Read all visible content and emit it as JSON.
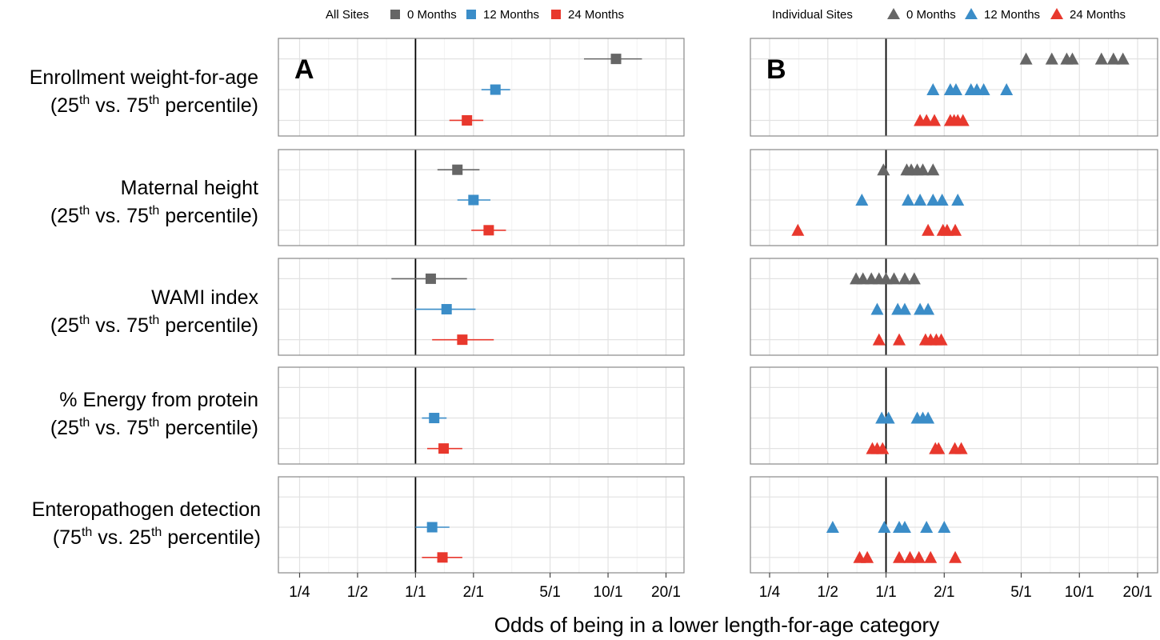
{
  "chart_data": {
    "type": "scatter",
    "xlabel": "Odds of being in a lower length-for-age category",
    "x_scale": "log",
    "x_ticks": [
      {
        "value": 0.25,
        "label": "1/4"
      },
      {
        "value": 0.5,
        "label": "1/2"
      },
      {
        "value": 1,
        "label": "1/1"
      },
      {
        "value": 2,
        "label": "2/1"
      },
      {
        "value": 5,
        "label": "5/1"
      },
      {
        "value": 10,
        "label": "10/1"
      },
      {
        "value": 20,
        "label": "20/1"
      }
    ],
    "xlim": [
      0.2,
      25
    ],
    "reference_line": 1,
    "grid": true,
    "timepoints": [
      {
        "key": "m0",
        "label": "0 Months",
        "color": "#666666"
      },
      {
        "key": "m12",
        "label": "12 Months",
        "color": "#3b8dc8"
      },
      {
        "key": "m24",
        "label": "24 Months",
        "color": "#e8382d"
      }
    ],
    "rows": [
      {
        "label_main": "Enrollment weight-for-age",
        "label_sub": {
          "a": "25",
          "b": "th",
          "c": " vs. 75",
          "d": "th",
          "e": " percentile"
        }
      },
      {
        "label_main": "Maternal height",
        "label_sub": {
          "a": "25",
          "b": "th",
          "c": " vs. 75",
          "d": "th",
          "e": " percentile"
        }
      },
      {
        "label_main": "WAMI index ",
        "label_sub": {
          "a": "25",
          "b": "th",
          "c": " vs. 75",
          "d": "th",
          "e": " percentile"
        }
      },
      {
        "label_main": "% Energy from protein",
        "label_sub": {
          "a": "25",
          "b": "th",
          "c": " vs. 75",
          "d": "th",
          "e": " percentile"
        }
      },
      {
        "label_main": "Enteropathogen detection",
        "label_sub": {
          "a": "75",
          "b": "th",
          "c": " vs. 25",
          "d": "th",
          "e": " percentile"
        }
      }
    ],
    "panels": [
      {
        "letter": "A",
        "legend_title": "All Sites",
        "marker": "square",
        "rows": [
          {
            "m0": {
              "est": 11.0,
              "lo": 7.5,
              "hi": 15.0
            },
            "m12": {
              "est": 2.6,
              "lo": 2.2,
              "hi": 3.1
            },
            "m24": {
              "est": 1.85,
              "lo": 1.5,
              "hi": 2.25
            }
          },
          {
            "m0": {
              "est": 1.65,
              "lo": 1.3,
              "hi": 2.15
            },
            "m12": {
              "est": 2.0,
              "lo": 1.65,
              "hi": 2.45
            },
            "m24": {
              "est": 2.4,
              "lo": 1.95,
              "hi": 2.95
            }
          },
          {
            "m0": {
              "est": 1.2,
              "lo": 0.75,
              "hi": 1.85
            },
            "m12": {
              "est": 1.45,
              "lo": 1.0,
              "hi": 2.05
            },
            "m24": {
              "est": 1.75,
              "lo": 1.22,
              "hi": 2.55
            }
          },
          {
            "m12": {
              "est": 1.25,
              "lo": 1.08,
              "hi": 1.45
            },
            "m24": {
              "est": 1.4,
              "lo": 1.15,
              "hi": 1.75
            }
          },
          {
            "m12": {
              "est": 1.22,
              "lo": 1.0,
              "hi": 1.5
            },
            "m24": {
              "est": 1.38,
              "lo": 1.08,
              "hi": 1.75
            }
          }
        ]
      },
      {
        "letter": "B",
        "legend_title": "Individual Sites",
        "marker": "triangle",
        "rows": [
          {
            "m0": [
              5.3,
              7.2,
              8.6,
              9.2,
              13.0,
              15.0,
              16.8
            ],
            "m12": [
              1.75,
              2.15,
              2.3,
              2.75,
              2.95,
              3.2,
              4.2
            ],
            "m24": [
              1.5,
              1.62,
              1.78,
              2.15,
              2.25,
              2.35,
              2.5
            ]
          },
          {
            "m0": [
              0.97,
              1.28,
              1.35,
              1.45,
              1.55,
              1.75
            ],
            "m12": [
              0.75,
              1.3,
              1.5,
              1.75,
              1.95,
              2.35
            ],
            "m24": [
              0.35,
              1.65,
              1.97,
              2.07,
              2.28
            ]
          },
          {
            "m0": [
              0.7,
              0.76,
              0.84,
              0.92,
              1.0,
              1.1,
              1.25,
              1.4
            ],
            "m12": [
              0.9,
              1.15,
              1.25,
              1.5,
              1.65
            ],
            "m24": [
              0.92,
              1.17,
              1.6,
              1.7,
              1.82,
              1.93
            ]
          },
          {
            "m12": [
              0.95,
              1.03,
              1.45,
              1.55,
              1.65
            ],
            "m24": [
              0.85,
              0.9,
              0.96,
              1.8,
              1.87,
              2.27,
              2.45
            ]
          },
          {
            "m12": [
              0.53,
              0.98,
              1.17,
              1.25,
              1.62,
              2.0
            ],
            "m24": [
              0.73,
              0.8,
              1.17,
              1.33,
              1.48,
              1.7,
              2.28
            ]
          }
        ]
      }
    ]
  }
}
